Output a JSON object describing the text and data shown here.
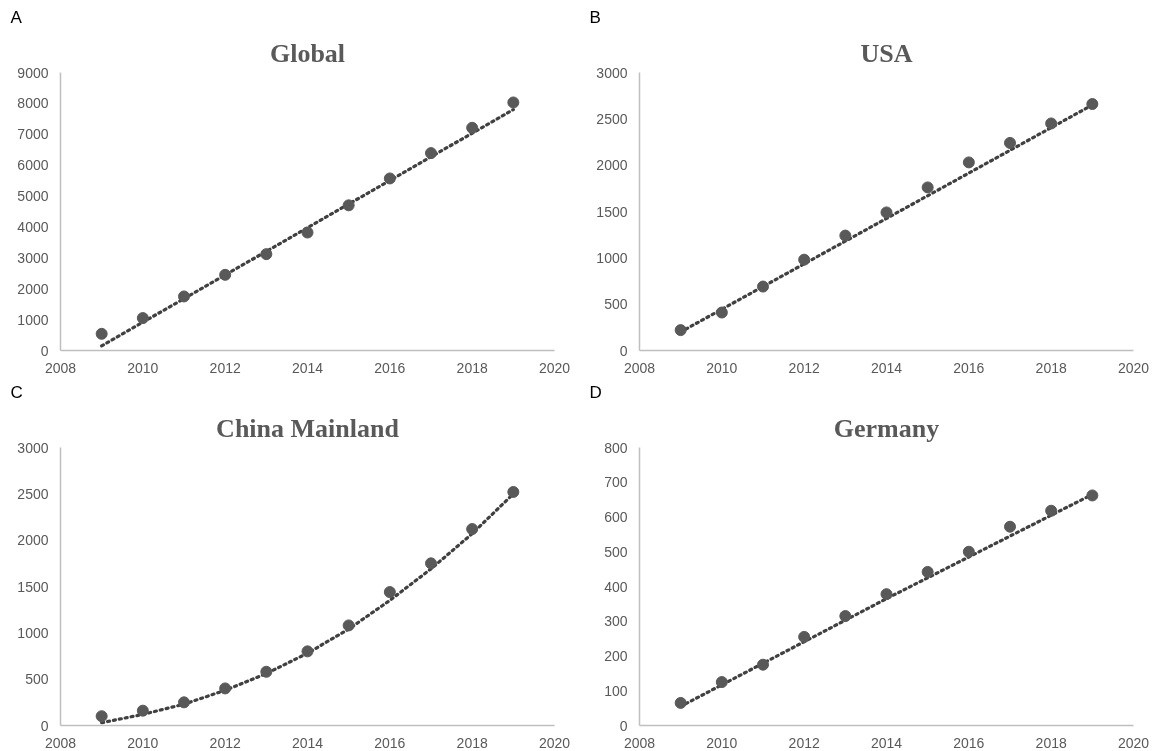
{
  "chart_data": [
    {
      "type": "scatter",
      "title": "Global",
      "annotations": [
        "A"
      ],
      "xlim": [
        2008,
        2020
      ],
      "xticks": [
        2008,
        2010,
        2012,
        2014,
        2016,
        2018,
        2020
      ],
      "ylim": [
        0,
        9000
      ],
      "yticks": [
        0,
        1000,
        2000,
        3000,
        4000,
        5000,
        6000,
        7000,
        8000,
        9000
      ],
      "grid": false,
      "series": [
        {
          "type": "scatter",
          "marker": "circle",
          "color": "#595959",
          "x": [
            2009,
            2010,
            2011,
            2012,
            2013,
            2014,
            2015,
            2016,
            2017,
            2018,
            2019
          ],
          "values": [
            540,
            1050,
            1750,
            2450,
            3120,
            3820,
            4700,
            5570,
            6390,
            7210,
            8030
          ]
        },
        {
          "type": "line",
          "line_style": "dotted",
          "color": "#404040",
          "x": [
            2009,
            2019
          ],
          "values": [
            150,
            7800
          ]
        }
      ]
    },
    {
      "type": "scatter",
      "title": "USA",
      "annotations": [
        "B"
      ],
      "xlim": [
        2008,
        2020
      ],
      "xticks": [
        2008,
        2010,
        2012,
        2014,
        2016,
        2018,
        2020
      ],
      "ylim": [
        0,
        3000
      ],
      "yticks": [
        0,
        500,
        1000,
        1500,
        2000,
        2500,
        3000
      ],
      "grid": false,
      "series": [
        {
          "type": "scatter",
          "marker": "circle",
          "color": "#595959",
          "x": [
            2009,
            2010,
            2011,
            2012,
            2013,
            2014,
            2015,
            2016,
            2017,
            2018,
            2019
          ],
          "values": [
            220,
            410,
            690,
            980,
            1240,
            1490,
            1760,
            2030,
            2240,
            2450,
            2660
          ]
        },
        {
          "type": "line",
          "line_style": "dotted",
          "color": "#404040",
          "x": [
            2009,
            2019
          ],
          "values": [
            200,
            2650
          ]
        }
      ]
    },
    {
      "type": "scatter",
      "title": "China Mainland",
      "annotations": [
        "C"
      ],
      "xlim": [
        2008,
        2020
      ],
      "xticks": [
        2008,
        2010,
        2012,
        2014,
        2016,
        2018,
        2020
      ],
      "ylim": [
        0,
        3000
      ],
      "yticks": [
        0,
        500,
        1000,
        1500,
        2000,
        2500,
        3000
      ],
      "grid": false,
      "series": [
        {
          "type": "scatter",
          "marker": "circle",
          "color": "#595959",
          "x": [
            2009,
            2010,
            2011,
            2012,
            2013,
            2014,
            2015,
            2016,
            2017,
            2018,
            2019
          ],
          "values": [
            100,
            160,
            250,
            400,
            580,
            800,
            1080,
            1440,
            1750,
            2120,
            2520
          ]
        },
        {
          "type": "line",
          "line_style": "dotted",
          "color": "#404040",
          "x": [
            2009,
            2010,
            2011,
            2012,
            2013,
            2014,
            2015,
            2016,
            2017,
            2018,
            2019
          ],
          "values": [
            30,
            120,
            230,
            380,
            560,
            780,
            1040,
            1350,
            1690,
            2070,
            2500
          ]
        }
      ]
    },
    {
      "type": "scatter",
      "title": "Germany",
      "annotations": [
        "D"
      ],
      "xlim": [
        2008,
        2020
      ],
      "xticks": [
        2008,
        2010,
        2012,
        2014,
        2016,
        2018,
        2020
      ],
      "ylim": [
        0,
        800
      ],
      "yticks": [
        0,
        100,
        200,
        300,
        400,
        500,
        600,
        700,
        800
      ],
      "grid": false,
      "series": [
        {
          "type": "scatter",
          "marker": "circle",
          "color": "#595959",
          "x": [
            2009,
            2010,
            2011,
            2012,
            2013,
            2014,
            2015,
            2016,
            2017,
            2018,
            2019
          ],
          "values": [
            65,
            125,
            175,
            255,
            315,
            378,
            442,
            500,
            572,
            618,
            662
          ]
        },
        {
          "type": "line",
          "line_style": "dotted",
          "color": "#404040",
          "x": [
            2009,
            2014,
            2019
          ],
          "values": [
            55,
            365,
            665
          ]
        }
      ]
    }
  ]
}
